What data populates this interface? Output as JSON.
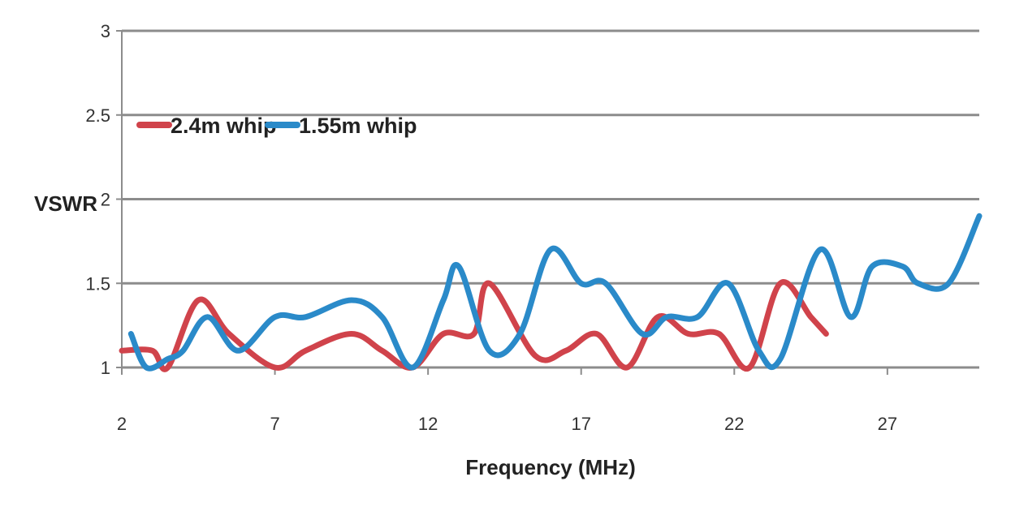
{
  "chart_data": {
    "type": "line",
    "title": "",
    "xlabel": "Frequency (MHz)",
    "ylabel": "VSWR",
    "xlim": [
      2,
      30
    ],
    "ylim": [
      1,
      3
    ],
    "xticks": [
      2,
      7,
      12,
      17,
      22,
      27
    ],
    "yticks": [
      1,
      1.5,
      2,
      2.5,
      3
    ],
    "grid": "horizontal",
    "legend_position": "top-left",
    "smooth": true,
    "series": [
      {
        "name": "2.4m whip",
        "color": "#d0434b",
        "x": [
          2,
          3,
          3.5,
          4.5,
          5.5,
          7,
          8,
          9.5,
          10.5,
          11.5,
          12.5,
          13.5,
          14,
          15.5,
          16.5,
          17.5,
          18.5,
          19.5,
          20.5,
          21.5,
          22.5,
          23.5,
          24.5,
          25
        ],
        "values": [
          1.1,
          1.1,
          1.0,
          1.4,
          1.2,
          1.0,
          1.1,
          1.2,
          1.1,
          1.0,
          1.2,
          1.2,
          1.5,
          1.07,
          1.1,
          1.2,
          1.0,
          1.3,
          1.2,
          1.2,
          1.0,
          1.5,
          1.3,
          1.2
        ]
      },
      {
        "name": "1.55m whip",
        "color": "#2a8ac9",
        "x": [
          2.3,
          2.8,
          3.5,
          4,
          4.8,
          5.8,
          7,
          8,
          9.5,
          10.5,
          11.5,
          12.5,
          13,
          14,
          15,
          16,
          17,
          17.8,
          19,
          19.8,
          20.8,
          21.8,
          22.8,
          23.5,
          24.8,
          25.8,
          26.5,
          27.5,
          28,
          29,
          30
        ],
        "values": [
          1.2,
          1.0,
          1.05,
          1.1,
          1.3,
          1.1,
          1.3,
          1.3,
          1.4,
          1.3,
          1.0,
          1.4,
          1.6,
          1.1,
          1.2,
          1.7,
          1.5,
          1.5,
          1.2,
          1.3,
          1.3,
          1.5,
          1.1,
          1.05,
          1.7,
          1.3,
          1.6,
          1.6,
          1.5,
          1.5,
          1.9
        ]
      }
    ]
  }
}
